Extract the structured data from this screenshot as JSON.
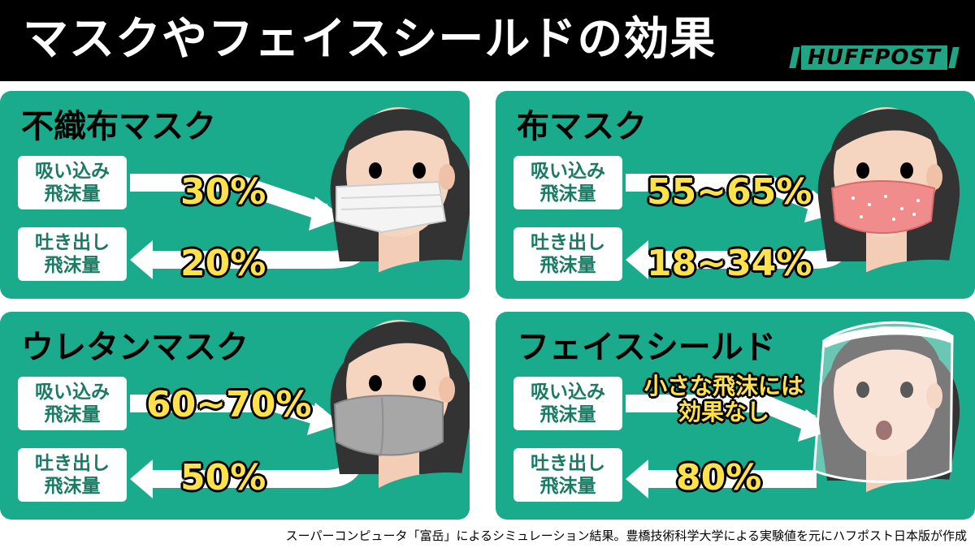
{
  "header": {
    "title": "マスクやフェイスシールドの効果",
    "logo": "HUFFPOST"
  },
  "panels": [
    {
      "title": "不織布マスク",
      "inhale_label": [
        "吸い込み",
        "飛沫量"
      ],
      "inhale_value": "30%",
      "exhale_label": [
        "吐き出し",
        "飛沫量"
      ],
      "exhale_value": "20%"
    },
    {
      "title": "布マスク",
      "inhale_label": [
        "吸い込み",
        "飛沫量"
      ],
      "inhale_value": "55~65%",
      "exhale_label": [
        "吐き出し",
        "飛沫量"
      ],
      "exhale_value": "18~34%"
    },
    {
      "title": "ウレタンマスク",
      "inhale_label": [
        "吸い込み",
        "飛沫量"
      ],
      "inhale_value": "60~70%",
      "exhale_label": [
        "吐き出し",
        "飛沫量"
      ],
      "exhale_value": "50%"
    },
    {
      "title": "フェイスシールド",
      "inhale_label": [
        "吸い込み",
        "飛沫量"
      ],
      "inhale_value": [
        "小さな飛沫には",
        "効果なし"
      ],
      "exhale_label": [
        "吐き出し",
        "飛沫量"
      ],
      "exhale_value": "80%"
    }
  ],
  "footer": "スーパーコンピュータ「富岳」によるシミュレーション結果。豊橋技術科学大学による実験値を元にハフポスト日本版が作成",
  "colors": {
    "panel": "#1aaa8c",
    "value": "#ffe14a",
    "label_text": "#1a7a63",
    "header": "#000000"
  }
}
